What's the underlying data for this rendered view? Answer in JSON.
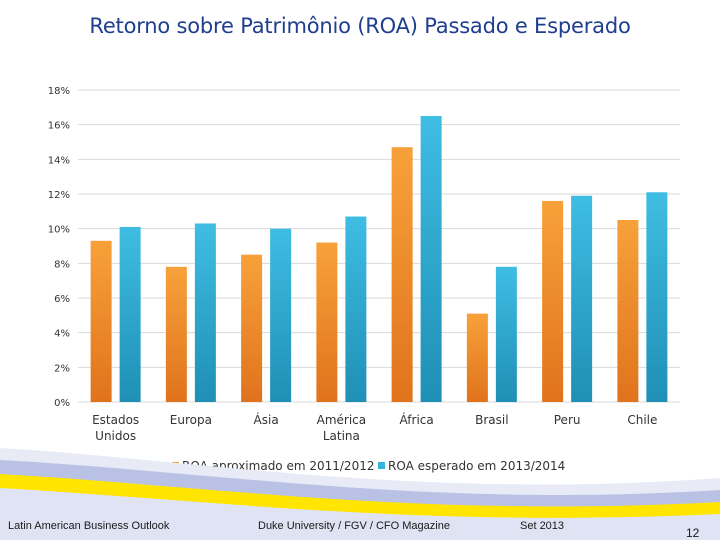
{
  "slide": {
    "title": "Retorno sobre Patrimônio (ROA) Passado e Esperado",
    "footer_left": "Latin American Business Outlook",
    "footer_center": "Duke University / FGV / CFO Magazine",
    "footer_date": "Set 2013",
    "page_number": "12"
  },
  "colors": {
    "title": "#1f3e8f",
    "series_1": "#f39b2d",
    "series_2": "#36b3d9",
    "grid": "#d9d9d9"
  },
  "chart_data": {
    "type": "bar",
    "title": "Retorno sobre Patrimônio (ROA) Passado e Esperado",
    "categories": [
      [
        "Estados",
        "Unidos"
      ],
      [
        "Europa"
      ],
      [
        "Ásia"
      ],
      [
        "América",
        "Latina"
      ],
      [
        "África"
      ],
      [
        "Brasil"
      ],
      [
        "Peru"
      ],
      [
        "Chile"
      ]
    ],
    "y_ticks": [
      "0%",
      "2%",
      "4%",
      "6%",
      "8%",
      "10%",
      "12%",
      "14%",
      "16%",
      "18%"
    ],
    "ylim": [
      0,
      18
    ],
    "legend_position": "bottom",
    "series": [
      {
        "name": "ROA aproximado em 2011/2012",
        "values": [
          9.3,
          7.8,
          8.5,
          9.2,
          14.7,
          5.1,
          11.6,
          10.5
        ]
      },
      {
        "name": "ROA esperado em 2013/2014",
        "values": [
          10.1,
          10.3,
          10.0,
          10.7,
          16.5,
          7.8,
          11.9,
          12.1
        ]
      }
    ]
  }
}
